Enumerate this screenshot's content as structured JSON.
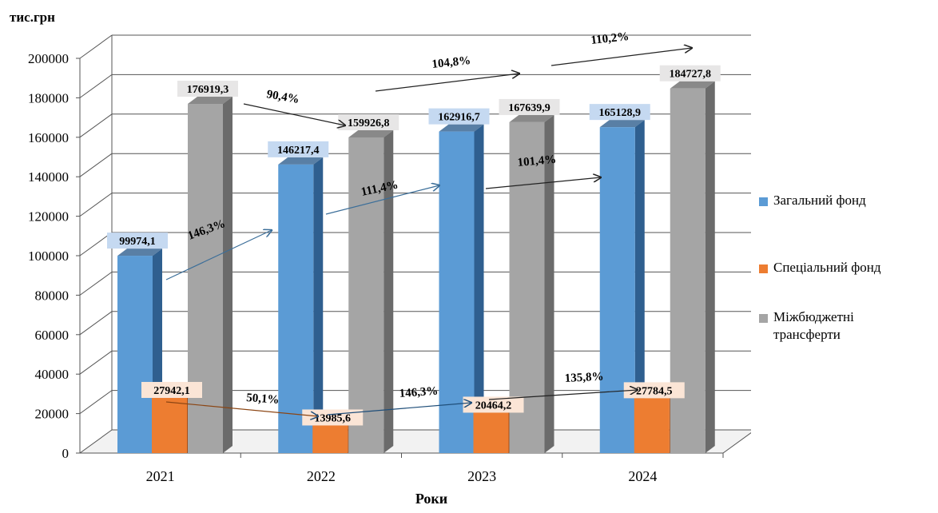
{
  "chart_data": {
    "type": "bar",
    "ylabel": "тис.грн",
    "xlabel": "Роки",
    "categories": [
      "2021",
      "2022",
      "2023",
      "2024"
    ],
    "ylim": [
      0,
      200000
    ],
    "yticks": [
      "0",
      "20000",
      "40000",
      "60000",
      "80000",
      "100000",
      "120000",
      "140000",
      "160000",
      "180000",
      "200000"
    ],
    "series": [
      {
        "name": "Загальний фонд",
        "color": "#5b9bd5",
        "side_color": "#2f5f8f",
        "values": [
          99974.1,
          146217.4,
          162916.7,
          165128.9
        ],
        "labels": [
          "99974,1",
          "146217,4",
          "162916,7",
          "165128,9"
        ],
        "label_bg": "#c5d9f1"
      },
      {
        "name": "Спеціальний фонд",
        "color": "#ed7d31",
        "side_color": "#a84e16",
        "values": [
          27942.1,
          13985.6,
          20464.2,
          27784.5
        ],
        "labels": [
          "27942,1",
          "13985,6",
          "20464,2",
          "27784,5"
        ],
        "label_bg": "#fbe5d6"
      },
      {
        "name": "Міжбюджетні трансферти",
        "color": "#a5a5a5",
        "side_color": "#6b6b6b",
        "values": [
          176919.3,
          159926.8,
          167639.9,
          184727.8
        ],
        "labels": [
          "176919,3",
          "159926,8",
          "167639,9",
          "184727,8"
        ],
        "label_bg": "#e7e6e6"
      }
    ],
    "growth_annotations": [
      {
        "series": "Загальний фонд",
        "from": "2021",
        "to": "2022",
        "text": "146,3%"
      },
      {
        "series": "Загальний фонд",
        "from": "2022",
        "to": "2023",
        "text": "111,4%"
      },
      {
        "series": "Загальний фонд",
        "from": "2023",
        "to": "2024",
        "text": "101,4%"
      },
      {
        "series": "Спеціальний фонд",
        "from": "2021",
        "to": "2022",
        "text": "50,1%"
      },
      {
        "series": "Спеціальний фонд",
        "from": "2022",
        "to": "2023",
        "text": "146,3%"
      },
      {
        "series": "Спеціальний фонд",
        "from": "2023",
        "to": "2024",
        "text": "135,8%"
      },
      {
        "series": "Міжбюджетні трансферти",
        "from": "2021",
        "to": "2022",
        "text": "90,4%"
      },
      {
        "series": "Міжбюджетні трансферти",
        "from": "2022",
        "to": "2023",
        "text": "104,8%"
      },
      {
        "series": "Міжбюджетні трансферти",
        "from": "2023",
        "to": "2024",
        "text": "110,2%"
      }
    ],
    "legend": "right",
    "grid": true
  },
  "legend_items": [
    {
      "label": "Загальний фонд",
      "color": "#5b9bd5"
    },
    {
      "label": "Спеціальний фонд",
      "color": "#ed7d31"
    },
    {
      "label": "Міжбюджетні трансферти",
      "color": "#a5a5a5"
    }
  ]
}
